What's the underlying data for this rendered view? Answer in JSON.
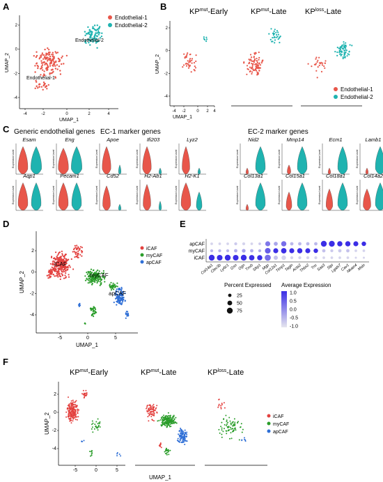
{
  "panel_labels": {
    "A": "A",
    "B": "B",
    "C": "C",
    "D": "D",
    "E": "E",
    "F": "F"
  },
  "colors": {
    "endo1": "#e8564a",
    "endo2": "#1fb3b0",
    "icaf": "#e3413f",
    "mycaf": "#2a9d2a",
    "apcaf": "#2f6fd6"
  },
  "A": {
    "ylabel": "UMAP_2",
    "xlabel": "UMAP_1",
    "xticks": [
      "-4",
      "-2",
      "0",
      "2",
      "4"
    ],
    "yticks": [
      "2",
      "0",
      "-2",
      "-4"
    ],
    "legend": [
      "Endothelial-1",
      "Endothelial-2"
    ],
    "annot1": "Endothelial-1",
    "annot2": "Endothelial-2"
  },
  "B": {
    "titles": [
      {
        "pre": "KP",
        "sup": "mut",
        "post": "-Early"
      },
      {
        "pre": "KP",
        "sup": "mut",
        "post": "-Late"
      },
      {
        "pre": "KP",
        "sup": "loss",
        "post": "-Late"
      }
    ],
    "ylabel": "UMAP_2",
    "xlabel": "UMAP_1",
    "xticks": [
      "-4",
      "-2",
      "0",
      "2",
      "4"
    ],
    "yticks": [
      "2",
      "0",
      "-2",
      "-4"
    ],
    "legend": [
      "Endothelial-1",
      "Endothelial-2"
    ]
  },
  "C": {
    "groups": [
      "Generic endothelial genes",
      "EC-1 marker genes",
      "EC-2 marker genes"
    ],
    "ylabel": "Expression Level",
    "genes": [
      {
        "g": "Esam",
        "v1": [
          0.9,
          0.8
        ],
        "v2": [
          0.9,
          0.9
        ],
        "k": "both"
      },
      {
        "g": "Eng",
        "v1": [
          0.85,
          0.85
        ],
        "v2": [
          0.9,
          0.9
        ],
        "k": "both"
      },
      {
        "g": "Apoe",
        "v1": [
          0.9,
          0.7
        ],
        "v2": [
          0.3,
          0.1
        ],
        "k": "ec1"
      },
      {
        "g": "Ifi203",
        "v1": [
          0.9,
          0.7
        ],
        "v2": [
          0.2,
          0.1
        ],
        "k": "ec1"
      },
      {
        "g": "Lyz2",
        "v1": [
          0.9,
          0.6
        ],
        "v2": [
          0.2,
          0.1
        ],
        "k": "ec1"
      },
      {
        "g": "Nid2",
        "v1": [
          0.2,
          0.1
        ],
        "v2": [
          0.9,
          0.8
        ],
        "k": "ec2"
      },
      {
        "g": "Mmp14",
        "v1": [
          0.3,
          0.2
        ],
        "v2": [
          0.9,
          0.8
        ],
        "k": "ec2"
      },
      {
        "g": "Ecm1",
        "v1": [
          0.2,
          0.1
        ],
        "v2": [
          0.9,
          0.8
        ],
        "k": "ec2"
      },
      {
        "g": "Lamb1",
        "v1": [
          0.2,
          0.1
        ],
        "v2": [
          0.9,
          0.8
        ],
        "k": "ec2"
      },
      {
        "g": "Aqp1",
        "v1": [
          0.9,
          0.8
        ],
        "v2": [
          0.9,
          0.8
        ],
        "k": "both"
      },
      {
        "g": "Pecam1",
        "v1": [
          0.9,
          0.8
        ],
        "v2": [
          0.9,
          0.8
        ],
        "k": "both"
      },
      {
        "g": "Cd52",
        "v1": [
          0.8,
          0.6
        ],
        "v2": [
          0.2,
          0.1
        ],
        "k": "ec1"
      },
      {
        "g": "H2-Ab1",
        "v1": [
          0.85,
          0.6
        ],
        "v2": [
          0.3,
          0.1
        ],
        "k": "ec1"
      },
      {
        "g": "H2-K1",
        "v1": [
          0.9,
          0.8
        ],
        "v2": [
          0.6,
          0.4
        ],
        "k": "ec1"
      },
      {
        "g": "Col13a1",
        "v1": [
          0.2,
          0.1
        ],
        "v2": [
          0.9,
          0.8
        ],
        "k": "ec2"
      },
      {
        "g": "Col15a1",
        "v1": [
          0.6,
          0.4
        ],
        "v2": [
          0.9,
          0.8
        ],
        "k": "ec2"
      },
      {
        "g": "Col18a1",
        "v1": [
          0.7,
          0.5
        ],
        "v2": [
          0.9,
          0.8
        ],
        "k": "ec2"
      },
      {
        "g": "Col14a2",
        "v1": [
          0.7,
          0.6
        ],
        "v2": [
          0.9,
          0.8
        ],
        "k": "ec2"
      }
    ]
  },
  "D": {
    "ylabel": "UMAP_2",
    "xlabel": "UMAP_1",
    "xticks": [
      "-5",
      "0",
      "5"
    ],
    "yticks": [
      "2",
      "0",
      "-2",
      "-4"
    ],
    "legend": [
      "iCAF",
      "myCAF",
      "apCAF"
    ],
    "annot": [
      "iCAF",
      "myCAF",
      "apCAF"
    ]
  },
  "E": {
    "rows": [
      "apCAF",
      "myCAF",
      "iCAF"
    ],
    "genes": [
      "Col14a1",
      "Clec3b",
      "Ly6c1",
      "Gsn",
      "Ogn",
      "Tnxb",
      "Sfrp1",
      "Mgp",
      "Col12a1",
      "Timp1",
      "Tagln",
      "Acta2",
      "Thbs2",
      "Tnc",
      "Saa3",
      "Slpi",
      "Lgals7",
      "Cav1",
      "Nkain4",
      "Msln"
    ],
    "size_title": "Percent Expressed",
    "size_labels": [
      "25",
      "50",
      "75"
    ],
    "color_title": "Average Expression",
    "color_ticks": [
      "1.0",
      "0.5",
      "0.0",
      "-0.5",
      "-1.0"
    ],
    "chart_data": {
      "type": "dotplot",
      "pct": [
        [
          15,
          15,
          15,
          20,
          20,
          15,
          15,
          55,
          35,
          60,
          25,
          25,
          25,
          25,
          75,
          75,
          60,
          60,
          55,
          45
        ],
        [
          20,
          20,
          20,
          25,
          30,
          25,
          20,
          70,
          55,
          65,
          55,
          60,
          55,
          45,
          25,
          20,
          25,
          25,
          15,
          15
        ],
        [
          75,
          70,
          75,
          70,
          75,
          65,
          60,
          80,
          40,
          45,
          20,
          20,
          20,
          20,
          15,
          15,
          15,
          15,
          10,
          10
        ]
      ],
      "avg": [
        [
          -0.8,
          -0.8,
          -0.8,
          -0.7,
          -0.8,
          -0.8,
          -0.7,
          0.2,
          -0.3,
          0.3,
          -0.5,
          -0.5,
          -0.5,
          -0.5,
          1.0,
          1.0,
          1.0,
          1.0,
          1.0,
          1.0
        ],
        [
          -0.5,
          -0.5,
          -0.5,
          -0.4,
          -0.3,
          -0.4,
          -0.4,
          0.5,
          1.0,
          1.0,
          1.0,
          1.0,
          1.0,
          1.0,
          -0.6,
          -0.7,
          -0.7,
          -0.6,
          -0.8,
          -0.8
        ],
        [
          1.0,
          1.0,
          1.0,
          1.0,
          1.0,
          1.0,
          1.0,
          0.3,
          -0.6,
          -0.8,
          -0.8,
          -0.8,
          -0.8,
          -0.8,
          -0.8,
          -0.8,
          -0.8,
          -0.8,
          -0.8,
          -0.8
        ]
      ]
    }
  },
  "F": {
    "titles": [
      {
        "pre": "KP",
        "sup": "mut",
        "post": "-Early"
      },
      {
        "pre": "KP",
        "sup": "mut",
        "post": "-Late"
      },
      {
        "pre": "KP",
        "sup": "loss",
        "post": "-Late"
      }
    ],
    "ylabel": "UMAP_2",
    "xlabel": "UMAP_1",
    "xticks": [
      "-5",
      "0",
      "5"
    ],
    "yticks": [
      "2",
      "0",
      "-2",
      "-4"
    ],
    "legend": [
      "iCAF",
      "myCAF",
      "apCAF"
    ]
  }
}
